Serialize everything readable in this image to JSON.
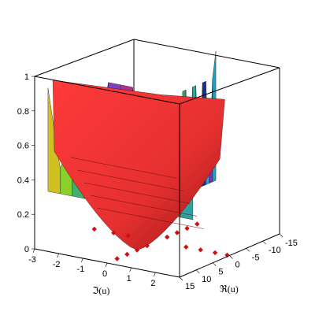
{
  "chart_data": {
    "type": "surface3d",
    "xlabel": "ℜ(u)",
    "ylabel": "ℑ(u)",
    "zlabel": "",
    "xlim": [
      -15,
      15
    ],
    "ylim": [
      -3,
      3
    ],
    "zlim": [
      0,
      1
    ],
    "x_ticks": [
      15,
      10,
      5,
      0,
      -5,
      -10,
      -15
    ],
    "x_tick_labels": [
      "15",
      "10",
      "5",
      "0",
      "-5",
      "-10",
      "-15"
    ],
    "y_ticks": [
      -3,
      -2,
      -1,
      0,
      1,
      2
    ],
    "y_tick_labels": [
      "-3",
      "-2",
      "-1",
      "0",
      "1",
      "2"
    ],
    "z_ticks": [
      0,
      0.2,
      0.4,
      0.6,
      0.8,
      1
    ],
    "z_tick_labels": [
      "0",
      "0.2",
      "0.4",
      "0.6",
      "0.8",
      "1"
    ],
    "surface": {
      "description_values": "height 1 plateau with deep valleys at the projected zeros; central red bowl reaching 0",
      "colormap": "rainbow (hue by argument)"
    },
    "zeros_projection": {
      "marker": "diamond",
      "color": "#cc1111",
      "points_imag_zero": [
        [
          -12,
          0
        ],
        [
          -9,
          0
        ],
        [
          -6,
          0
        ],
        [
          -3,
          0
        ],
        [
          3,
          0
        ],
        [
          6,
          0
        ],
        [
          9,
          0
        ],
        [
          12,
          0
        ]
      ],
      "points_real_zero": [
        [
          0,
          -2.6
        ],
        [
          0,
          -1.8
        ],
        [
          0,
          -1.2
        ],
        [
          0,
          1.2
        ],
        [
          0,
          1.8
        ],
        [
          0,
          2.4
        ],
        [
          0,
          2.9
        ]
      ]
    }
  }
}
